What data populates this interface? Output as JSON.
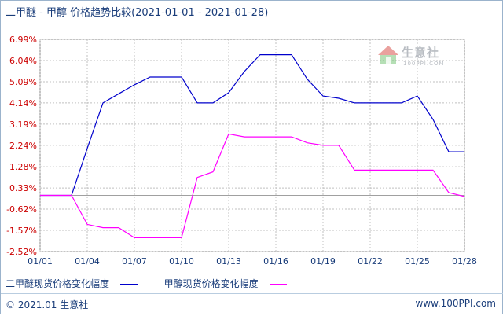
{
  "header": {
    "title": "二甲醚 - 甲醇 价格趋势比较(2021-01-01 - 2021-01-28)"
  },
  "watermark": {
    "brand": "生意社",
    "site": "100PPI.COM"
  },
  "footer": {
    "left": "© 2021.01 生意社",
    "right": "www.100PPI.com"
  },
  "colors": {
    "series1": "#0000cc",
    "series2": "#ff00ff",
    "tick_text": "#cc0000",
    "xtick_text": "#1a3d7a",
    "grid": "#c0c0c0",
    "zero": "#a0a0a0"
  },
  "chart_data": {
    "type": "line",
    "title": "二甲醚 - 甲醇 价格趋势比较(2021-01-01 - 2021-01-28)",
    "ylim": [
      -2.52,
      6.99
    ],
    "y_ticks": [
      "6.99%",
      "6.04%",
      "5.09%",
      "4.14%",
      "3.19%",
      "2.24%",
      "1.28%",
      "0.33%",
      "-0.62%",
      "-1.57%",
      "-2.52%"
    ],
    "y_tick_values": [
      6.99,
      6.04,
      5.09,
      4.14,
      3.19,
      2.24,
      1.28,
      0.33,
      -0.62,
      -1.57,
      -2.52
    ],
    "x": [
      "01/01",
      "01/02",
      "01/03",
      "01/04",
      "01/05",
      "01/06",
      "01/07",
      "01/08",
      "01/09",
      "01/10",
      "01/11",
      "01/12",
      "01/13",
      "01/14",
      "01/15",
      "01/16",
      "01/17",
      "01/18",
      "01/19",
      "01/20",
      "01/21",
      "01/22",
      "01/23",
      "01/24",
      "01/25",
      "01/26",
      "01/27",
      "01/28"
    ],
    "x_ticks": [
      "01/01",
      "01/04",
      "01/07",
      "01/10",
      "01/13",
      "01/16",
      "01/19",
      "01/22",
      "01/25",
      "01/28"
    ],
    "grid": true,
    "legend_position": "bottom",
    "series": [
      {
        "name": "二甲醚现货价格变化幅度",
        "values": [
          0,
          0,
          0,
          2.1,
          4.14,
          4.55,
          4.95,
          5.3,
          5.3,
          5.3,
          4.14,
          4.14,
          4.6,
          5.55,
          6.3,
          6.3,
          6.3,
          5.2,
          4.45,
          4.35,
          4.14,
          4.14,
          4.14,
          4.14,
          4.45,
          3.4,
          1.95,
          1.95
        ]
      },
      {
        "name": "甲醇现货价格变化幅度",
        "values": [
          0,
          0,
          0,
          -1.3,
          -1.45,
          -1.45,
          -1.9,
          -1.9,
          -1.9,
          -1.9,
          0.8,
          1.05,
          2.75,
          2.62,
          2.62,
          2.62,
          2.62,
          2.35,
          2.24,
          2.24,
          1.13,
          1.13,
          1.13,
          1.13,
          1.13,
          1.13,
          0.12,
          -0.05
        ]
      }
    ]
  }
}
